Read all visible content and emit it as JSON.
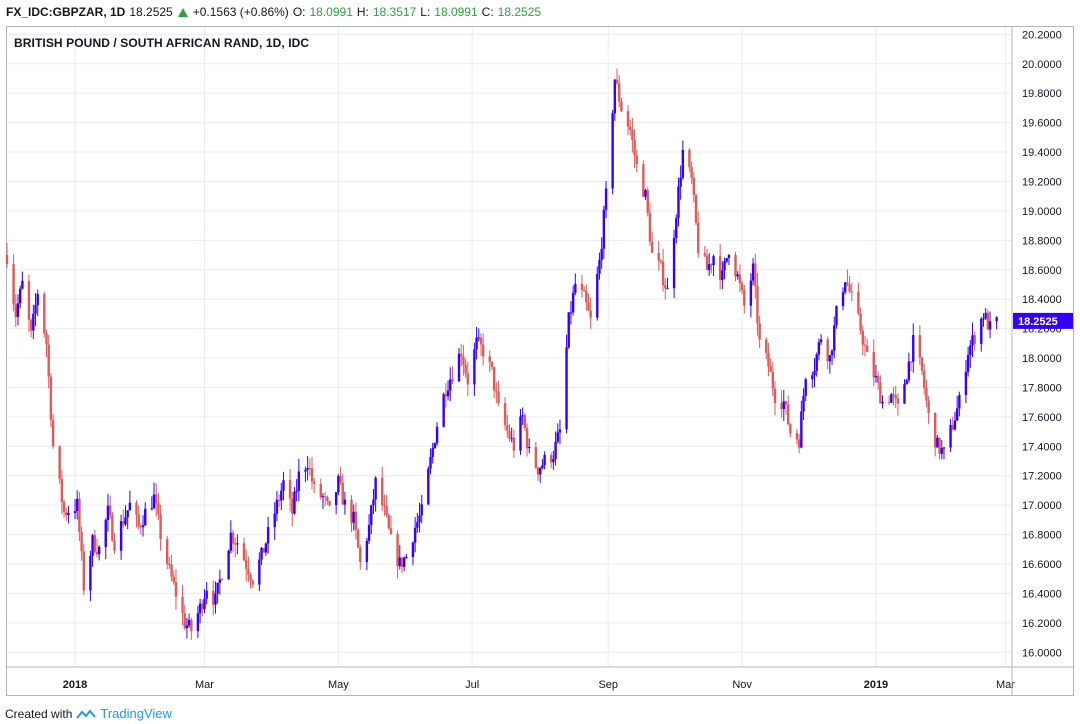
{
  "header": {
    "symbol": "FX_IDC:GBPZAR, 1D",
    "last": "18.2525",
    "change": "+0.1563 (+0.86%)",
    "o_label": "O:",
    "o_value": "18.0991",
    "h_label": "H:",
    "h_value": "18.3517",
    "l_label": "L:",
    "l_value": "18.0991",
    "c_label": "C:",
    "c_value": "18.2525"
  },
  "footer": {
    "created_with": "Created with",
    "brand": "TradingView"
  },
  "colors": {
    "up": "#3300ff",
    "down": "#e05a5a",
    "grid": "#e9ecf2",
    "price_tag": "#3300ff"
  },
  "chart_data": {
    "type": "candlestick",
    "title": "BRITISH POUND / SOUTH AFRICAN RAND, 1D, IDC",
    "y_axis": {
      "min": 15.9,
      "max": 20.25,
      "position": "right",
      "ticks": [
        "16.0000",
        "16.2000",
        "16.4000",
        "16.6000",
        "16.8000",
        "17.0000",
        "17.2000",
        "17.4000",
        "17.6000",
        "17.8000",
        "18.0000",
        "18.2000",
        "18.4000",
        "18.6000",
        "18.8000",
        "19.0000",
        "19.2000",
        "19.4000",
        "19.6000",
        "19.8000",
        "20.0000",
        "20.2000"
      ]
    },
    "x_axis": {
      "start": "2017-12-01",
      "end": "2019-03-04",
      "ticks": [
        {
          "date": "2018-01-01",
          "label": "2018"
        },
        {
          "date": "2018-03-01",
          "label": "Mar"
        },
        {
          "date": "2018-05-01",
          "label": "May"
        },
        {
          "date": "2018-07-01",
          "label": "Jul"
        },
        {
          "date": "2018-09-01",
          "label": "Sep"
        },
        {
          "date": "2018-11-01",
          "label": "Nov"
        },
        {
          "date": "2019-01-01",
          "label": "2019"
        },
        {
          "date": "2019-03-01",
          "label": "Mar"
        }
      ]
    },
    "grid": true,
    "last_price": "18.2525",
    "closes": [
      {
        "date": "2017-12-01",
        "close": 18.7
      },
      {
        "date": "2017-12-05",
        "close": 18.3
      },
      {
        "date": "2017-12-08",
        "close": 18.5
      },
      {
        "date": "2017-12-12",
        "close": 18.15
      },
      {
        "date": "2017-12-15",
        "close": 18.45
      },
      {
        "date": "2017-12-19",
        "close": 18.1
      },
      {
        "date": "2017-12-22",
        "close": 17.4
      },
      {
        "date": "2017-12-27",
        "close": 16.95
      },
      {
        "date": "2018-01-02",
        "close": 17.0
      },
      {
        "date": "2018-01-05",
        "close": 16.45
      },
      {
        "date": "2018-01-09",
        "close": 16.75
      },
      {
        "date": "2018-01-12",
        "close": 16.7
      },
      {
        "date": "2018-01-16",
        "close": 16.95
      },
      {
        "date": "2018-01-19",
        "close": 16.75
      },
      {
        "date": "2018-01-23",
        "close": 16.9
      },
      {
        "date": "2018-01-26",
        "close": 17.0
      },
      {
        "date": "2018-01-30",
        "close": 16.85
      },
      {
        "date": "2018-02-02",
        "close": 16.95
      },
      {
        "date": "2018-02-06",
        "close": 17.05
      },
      {
        "date": "2018-02-09",
        "close": 16.8
      },
      {
        "date": "2018-02-13",
        "close": 16.55
      },
      {
        "date": "2018-02-16",
        "close": 16.4
      },
      {
        "date": "2018-02-20",
        "close": 16.2
      },
      {
        "date": "2018-02-23",
        "close": 16.15
      },
      {
        "date": "2018-02-27",
        "close": 16.3
      },
      {
        "date": "2018-03-02",
        "close": 16.45
      },
      {
        "date": "2018-03-06",
        "close": 16.35
      },
      {
        "date": "2018-03-09",
        "close": 16.55
      },
      {
        "date": "2018-03-13",
        "close": 16.8
      },
      {
        "date": "2018-03-16",
        "close": 16.75
      },
      {
        "date": "2018-03-20",
        "close": 16.6
      },
      {
        "date": "2018-03-23",
        "close": 16.5
      },
      {
        "date": "2018-03-27",
        "close": 16.65
      },
      {
        "date": "2018-03-30",
        "close": 16.8
      },
      {
        "date": "2018-04-03",
        "close": 17.0
      },
      {
        "date": "2018-04-06",
        "close": 17.15
      },
      {
        "date": "2018-04-10",
        "close": 16.95
      },
      {
        "date": "2018-04-13",
        "close": 17.2
      },
      {
        "date": "2018-04-17",
        "close": 17.3
      },
      {
        "date": "2018-04-20",
        "close": 17.1
      },
      {
        "date": "2018-04-24",
        "close": 17.05
      },
      {
        "date": "2018-04-27",
        "close": 16.95
      },
      {
        "date": "2018-05-01",
        "close": 17.15
      },
      {
        "date": "2018-05-04",
        "close": 17.0
      },
      {
        "date": "2018-05-08",
        "close": 16.9
      },
      {
        "date": "2018-05-11",
        "close": 16.6
      },
      {
        "date": "2018-05-15",
        "close": 16.85
      },
      {
        "date": "2018-05-18",
        "close": 17.15
      },
      {
        "date": "2018-05-22",
        "close": 16.95
      },
      {
        "date": "2018-05-25",
        "close": 16.75
      },
      {
        "date": "2018-05-29",
        "close": 16.6
      },
      {
        "date": "2018-06-01",
        "close": 16.65
      },
      {
        "date": "2018-06-05",
        "close": 16.85
      },
      {
        "date": "2018-06-08",
        "close": 16.95
      },
      {
        "date": "2018-06-12",
        "close": 17.3
      },
      {
        "date": "2018-06-15",
        "close": 17.55
      },
      {
        "date": "2018-06-19",
        "close": 17.8
      },
      {
        "date": "2018-06-22",
        "close": 17.9
      },
      {
        "date": "2018-06-26",
        "close": 18.05
      },
      {
        "date": "2018-06-29",
        "close": 17.85
      },
      {
        "date": "2018-07-03",
        "close": 18.1
      },
      {
        "date": "2018-07-06",
        "close": 18.05
      },
      {
        "date": "2018-07-10",
        "close": 17.9
      },
      {
        "date": "2018-07-13",
        "close": 17.65
      },
      {
        "date": "2018-07-17",
        "close": 17.5
      },
      {
        "date": "2018-07-20",
        "close": 17.4
      },
      {
        "date": "2018-07-24",
        "close": 17.6
      },
      {
        "date": "2018-07-27",
        "close": 17.35
      },
      {
        "date": "2018-07-31",
        "close": 17.25
      },
      {
        "date": "2018-08-03",
        "close": 17.3
      },
      {
        "date": "2018-08-07",
        "close": 17.35
      },
      {
        "date": "2018-08-10",
        "close": 17.5
      },
      {
        "date": "2018-08-14",
        "close": 18.25
      },
      {
        "date": "2018-08-17",
        "close": 18.5
      },
      {
        "date": "2018-08-21",
        "close": 18.4
      },
      {
        "date": "2018-08-24",
        "close": 18.25
      },
      {
        "date": "2018-08-28",
        "close": 18.65
      },
      {
        "date": "2018-08-31",
        "close": 19.1
      },
      {
        "date": "2018-09-04",
        "close": 19.9
      },
      {
        "date": "2018-09-07",
        "close": 19.7
      },
      {
        "date": "2018-09-11",
        "close": 19.55
      },
      {
        "date": "2018-09-14",
        "close": 19.3
      },
      {
        "date": "2018-09-18",
        "close": 19.1
      },
      {
        "date": "2018-09-21",
        "close": 18.7
      },
      {
        "date": "2018-09-25",
        "close": 18.6
      },
      {
        "date": "2018-09-28",
        "close": 18.45
      },
      {
        "date": "2018-10-02",
        "close": 19.0
      },
      {
        "date": "2018-10-05",
        "close": 19.4
      },
      {
        "date": "2018-10-09",
        "close": 19.2
      },
      {
        "date": "2018-10-12",
        "close": 18.75
      },
      {
        "date": "2018-10-16",
        "close": 18.6
      },
      {
        "date": "2018-10-19",
        "close": 18.7
      },
      {
        "date": "2018-10-23",
        "close": 18.55
      },
      {
        "date": "2018-10-26",
        "close": 18.75
      },
      {
        "date": "2018-10-30",
        "close": 18.55
      },
      {
        "date": "2018-11-02",
        "close": 18.35
      },
      {
        "date": "2018-11-06",
        "close": 18.6
      },
      {
        "date": "2018-11-09",
        "close": 18.1
      },
      {
        "date": "2018-11-13",
        "close": 17.95
      },
      {
        "date": "2018-11-16",
        "close": 17.75
      },
      {
        "date": "2018-11-20",
        "close": 17.7
      },
      {
        "date": "2018-11-23",
        "close": 17.5
      },
      {
        "date": "2018-11-27",
        "close": 17.45
      },
      {
        "date": "2018-11-30",
        "close": 17.9
      },
      {
        "date": "2018-12-04",
        "close": 17.95
      },
      {
        "date": "2018-12-07",
        "close": 18.15
      },
      {
        "date": "2018-12-11",
        "close": 18.0
      },
      {
        "date": "2018-12-14",
        "close": 18.3
      },
      {
        "date": "2018-12-18",
        "close": 18.55
      },
      {
        "date": "2018-12-21",
        "close": 18.4
      },
      {
        "date": "2018-12-25",
        "close": 18.2
      },
      {
        "date": "2018-12-28",
        "close": 18.0
      },
      {
        "date": "2019-01-01",
        "close": 17.85
      },
      {
        "date": "2019-01-04",
        "close": 17.7
      },
      {
        "date": "2019-01-08",
        "close": 17.75
      },
      {
        "date": "2019-01-11",
        "close": 17.65
      },
      {
        "date": "2019-01-15",
        "close": 17.9
      },
      {
        "date": "2019-01-18",
        "close": 18.1
      },
      {
        "date": "2019-01-22",
        "close": 17.9
      },
      {
        "date": "2019-01-25",
        "close": 17.6
      },
      {
        "date": "2019-01-29",
        "close": 17.4
      },
      {
        "date": "2019-02-01",
        "close": 17.35
      },
      {
        "date": "2019-02-05",
        "close": 17.55
      },
      {
        "date": "2019-02-08",
        "close": 17.7
      },
      {
        "date": "2019-02-12",
        "close": 18.05
      },
      {
        "date": "2019-02-15",
        "close": 18.15
      },
      {
        "date": "2019-02-19",
        "close": 18.3
      },
      {
        "date": "2019-02-22",
        "close": 18.2
      },
      {
        "date": "2019-02-26",
        "close": 18.25
      }
    ]
  }
}
